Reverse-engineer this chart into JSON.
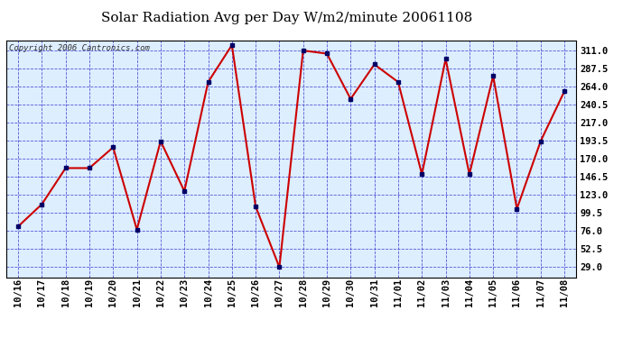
{
  "title": "Solar Radiation Avg per Day W/m2/minute 20061108",
  "copyright": "Copyright 2006 Cantronics.com",
  "dates": [
    "10/16",
    "10/17",
    "10/18",
    "10/19",
    "10/20",
    "10/21",
    "10/22",
    "10/23",
    "10/24",
    "10/25",
    "10/26",
    "10/27",
    "10/28",
    "10/29",
    "10/30",
    "10/31",
    "11/01",
    "11/02",
    "11/03",
    "11/04",
    "11/05",
    "11/06",
    "11/07",
    "11/08"
  ],
  "values": [
    82,
    111,
    158,
    158,
    185,
    78,
    193,
    128,
    270,
    318,
    108,
    29,
    311,
    307,
    248,
    293,
    270,
    150,
    300,
    150,
    278,
    105,
    193,
    258
  ],
  "line_color": "#cc0000",
  "marker_color": "#000066",
  "bg_color": "#ddeeff",
  "plot_bg": "#ffffff",
  "grid_color": "#3333cc",
  "title_fontsize": 11,
  "copyright_fontsize": 6.5,
  "yticks": [
    29.0,
    52.5,
    76.0,
    99.5,
    123.0,
    146.5,
    170.0,
    193.5,
    217.0,
    240.5,
    264.0,
    287.5,
    311.0
  ],
  "ylim": [
    16.0,
    324.0
  ],
  "tick_fontsize": 7.5
}
